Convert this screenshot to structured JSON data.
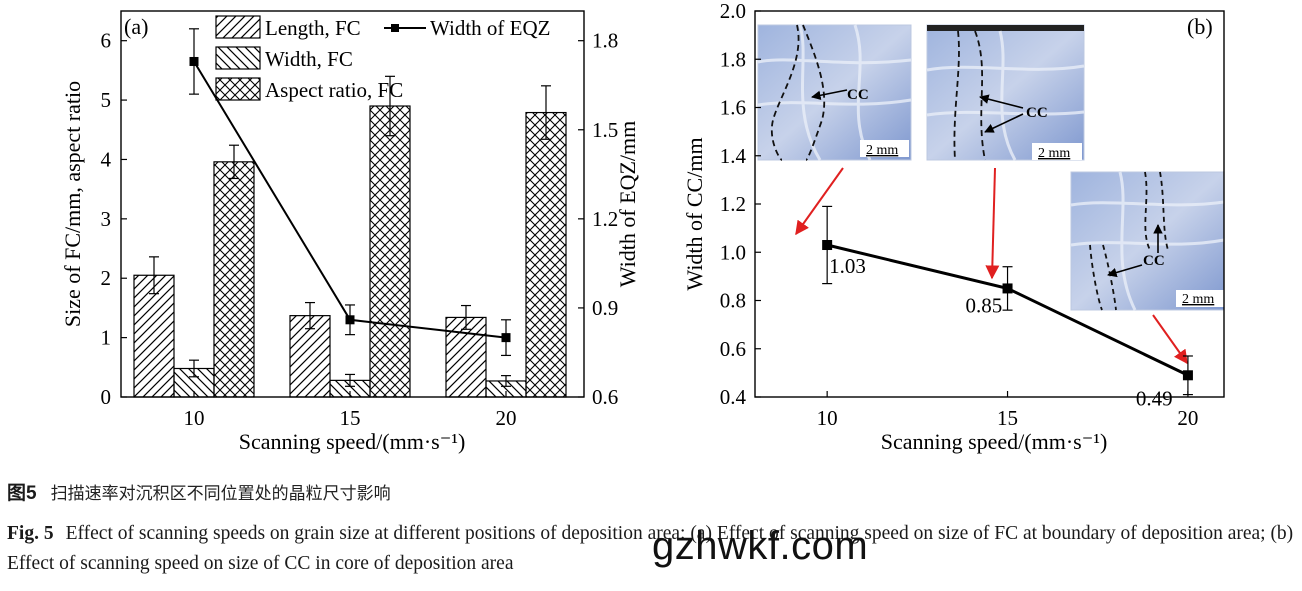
{
  "chart_data": [
    {
      "type": "bar",
      "panel_label": "(a)",
      "categories": [
        "10",
        "15",
        "20"
      ],
      "series": [
        {
          "name": "Length, FC",
          "values": [
            2.05,
            1.37,
            1.34
          ],
          "errors": [
            0.31,
            0.22,
            0.2
          ],
          "hatch": "diagonal-forward"
        },
        {
          "name": "Width, FC",
          "values": [
            0.48,
            0.28,
            0.27
          ],
          "errors": [
            0.14,
            0.1,
            0.09
          ],
          "hatch": "diagonal-backward"
        },
        {
          "name": "Aspect ratio, FC",
          "values": [
            3.96,
            4.9,
            4.79
          ],
          "errors": [
            0.28,
            0.5,
            0.45
          ],
          "hatch": "crosshatch"
        }
      ],
      "line_series": {
        "name": "Width of EQZ",
        "axis": "right",
        "values": [
          1.73,
          0.86,
          0.8
        ],
        "errors": [
          0.11,
          0.05,
          0.06
        ],
        "marker": "square"
      },
      "xlabel": "Scanning speed/(mm·s⁻¹)",
      "ylabel": "Size of FC/mm, aspect ratio",
      "ylabel_right": "Width of EQZ/mm",
      "ylim": [
        0,
        6.5
      ],
      "ylim_right": [
        0.6,
        1.9
      ],
      "yticks": [
        "0",
        "1",
        "2",
        "3",
        "4",
        "5",
        "6"
      ],
      "yticks_right": [
        "0.6",
        "0.9",
        "1.2",
        "1.5",
        "1.8"
      ],
      "legend_position": "top"
    },
    {
      "type": "line",
      "panel_label": "(b)",
      "x": [
        10,
        15,
        20
      ],
      "series": [
        {
          "values": [
            1.03,
            0.85,
            0.49
          ],
          "errors": [
            0.16,
            0.09,
            0.08
          ],
          "labels": [
            "1.03",
            "0.85",
            "0.49"
          ],
          "marker": "square"
        }
      ],
      "xlabel": "Scanning speed/(mm·s⁻¹)",
      "ylabel": "Width of CC/mm",
      "xlim": [
        8,
        21
      ],
      "ylim": [
        0.4,
        2.0
      ],
      "xticks": [
        "10",
        "15",
        "20"
      ],
      "yticks": [
        "0.4",
        "0.6",
        "0.8",
        "1.0",
        "1.2",
        "1.4",
        "1.6",
        "1.8",
        "2.0"
      ],
      "insets": [
        {
          "label": "CC",
          "scale": "2 mm"
        },
        {
          "label": "CC",
          "scale": "2 mm"
        },
        {
          "label": "CC",
          "scale": "2 mm"
        }
      ],
      "arrow_color": "#e02020"
    }
  ],
  "caption": {
    "cn_label": "图5",
    "cn_text": "扫描速率对沉积区不同位置处的晶粒尺寸影响",
    "en_label": "Fig. 5",
    "en_text": "Effect of scanning speeds on grain size at different positions of deposition area: (a) Effect of scanning speed on size of FC at boundary of deposition area; (b) Effect of scanning speed on size of CC in core of deposition area"
  },
  "watermark": "gzhwkf.com"
}
